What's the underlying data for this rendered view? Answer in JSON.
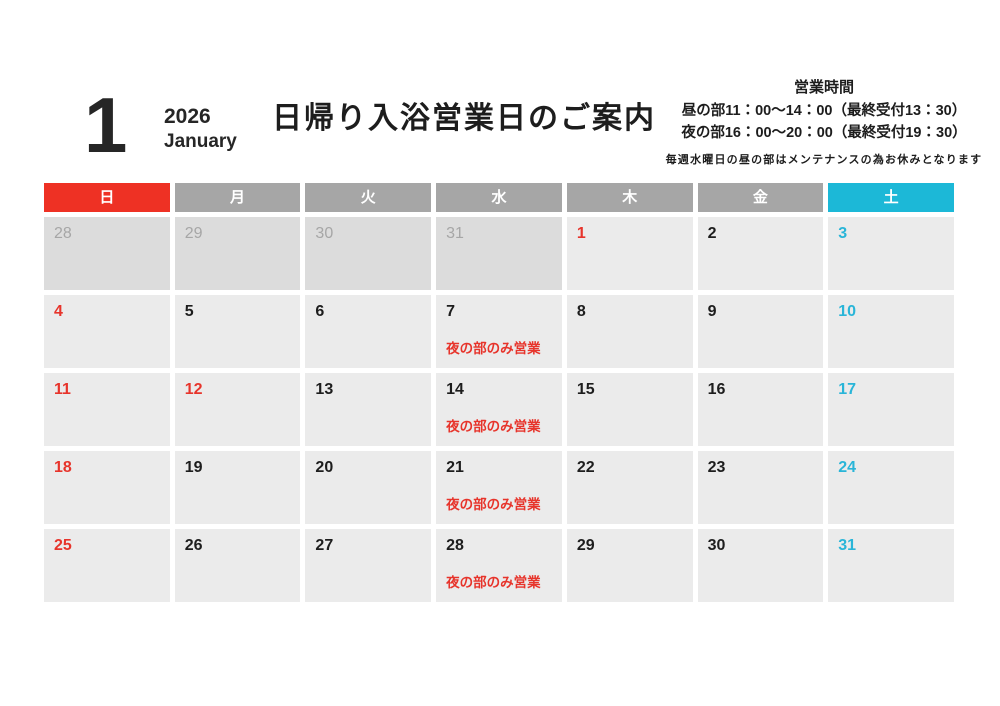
{
  "header": {
    "month_number": "1",
    "year": "2026",
    "month_name": "January",
    "title": "日帰り入浴営業日のご案内",
    "hours": {
      "heading": "営業時間",
      "line1": "昼の部11：00～14：00（最終受付13：30）",
      "line2": "夜の部16：00～20：00（最終受付19：30）",
      "note": "毎週水曜日の昼の部はメンテナンスの為お休みとなります"
    }
  },
  "calendar": {
    "weekdays": [
      {
        "label": "日",
        "type": "sunday"
      },
      {
        "label": "月",
        "type": "weekday"
      },
      {
        "label": "火",
        "type": "weekday"
      },
      {
        "label": "水",
        "type": "weekday"
      },
      {
        "label": "木",
        "type": "weekday"
      },
      {
        "label": "金",
        "type": "weekday"
      },
      {
        "label": "土",
        "type": "saturday"
      }
    ],
    "night_only_note": "夜の部のみ営業",
    "cells": [
      {
        "day": "28",
        "type": "prev"
      },
      {
        "day": "29",
        "type": "prev"
      },
      {
        "day": "30",
        "type": "prev"
      },
      {
        "day": "31",
        "type": "prev"
      },
      {
        "day": "1",
        "type": "red"
      },
      {
        "day": "2",
        "type": "normal"
      },
      {
        "day": "3",
        "type": "cyan"
      },
      {
        "day": "4",
        "type": "red"
      },
      {
        "day": "5",
        "type": "normal"
      },
      {
        "day": "6",
        "type": "normal"
      },
      {
        "day": "7",
        "type": "normal",
        "note": "夜の部のみ営業"
      },
      {
        "day": "8",
        "type": "normal"
      },
      {
        "day": "9",
        "type": "normal"
      },
      {
        "day": "10",
        "type": "cyan"
      },
      {
        "day": "11",
        "type": "red"
      },
      {
        "day": "12",
        "type": "red"
      },
      {
        "day": "13",
        "type": "normal"
      },
      {
        "day": "14",
        "type": "normal",
        "note": "夜の部のみ営業"
      },
      {
        "day": "15",
        "type": "normal"
      },
      {
        "day": "16",
        "type": "normal"
      },
      {
        "day": "17",
        "type": "cyan"
      },
      {
        "day": "18",
        "type": "red"
      },
      {
        "day": "19",
        "type": "normal"
      },
      {
        "day": "20",
        "type": "normal"
      },
      {
        "day": "21",
        "type": "normal",
        "note": "夜の部のみ営業"
      },
      {
        "day": "22",
        "type": "normal"
      },
      {
        "day": "23",
        "type": "normal"
      },
      {
        "day": "24",
        "type": "cyan"
      },
      {
        "day": "25",
        "type": "red"
      },
      {
        "day": "26",
        "type": "normal"
      },
      {
        "day": "27",
        "type": "normal"
      },
      {
        "day": "28",
        "type": "normal",
        "note": "夜の部のみ営業"
      },
      {
        "day": "29",
        "type": "normal"
      },
      {
        "day": "30",
        "type": "normal"
      },
      {
        "day": "31",
        "type": "cyan"
      }
    ]
  },
  "colors": {
    "sunday_red": "#ee3124",
    "saturday_cyan": "#1cb8d7",
    "weekday_gray": "#a6a6a6",
    "cell_bg": "#ebebeb",
    "prev_cell_bg": "#dcdcdc",
    "date_red": "#e7342b",
    "date_cyan": "#29b5d8",
    "date_black": "#1d1d1d"
  }
}
